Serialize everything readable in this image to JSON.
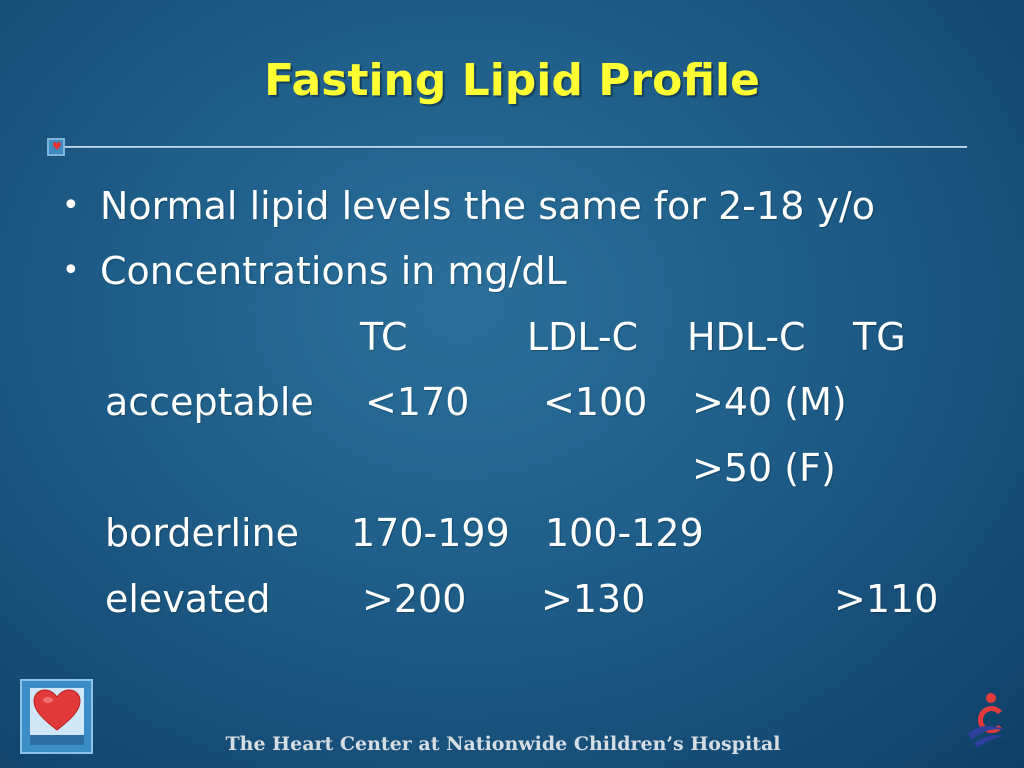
{
  "slide": {
    "title": "Fasting Lipid Profile",
    "bullets": [
      "Normal lipid levels the same for 2-18 y/o",
      "Concentrations in mg/dL"
    ],
    "table": {
      "header": {
        "tc": "TC",
        "ldl": "LDL-C",
        "hdl": "HDL-C",
        "tg": "TG"
      },
      "rows": [
        {
          "label": "acceptable",
          "tc": "<170",
          "ldl": "<100",
          "hdl": ">40 (M)",
          "hdl_2": ">50 (F)",
          "tg": ""
        },
        {
          "label": "borderline",
          "tc": "170-199",
          "ldl": "100-129",
          "hdl": "",
          "tg": ""
        },
        {
          "label": "elevated",
          "tc": ">200",
          "ldl": ">130",
          "hdl": "",
          "tg": ">110"
        }
      ]
    }
  },
  "footer": {
    "text": "The Heart Center at Nationwide Children’s Hospital"
  },
  "colors": {
    "title": "#ffff33",
    "background": "#1f5f8a",
    "heart": "#e52f2f",
    "footer_text": "#d8dde2"
  },
  "icons": {
    "divider_marker": "heart-icon",
    "corner_logo": "heart-box-icon",
    "hospital_logo": "nationwide-childrens-logo-icon"
  }
}
